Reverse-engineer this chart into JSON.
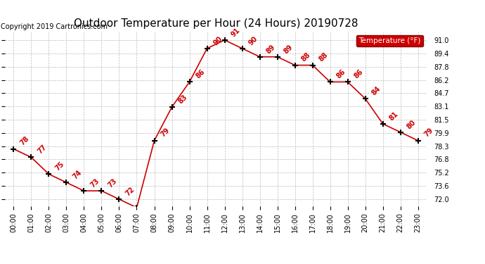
{
  "title": "Outdoor Temperature per Hour (24 Hours) 20190728",
  "copyright": "Copyright 2019 Cartronics.com",
  "legend_label": "Temperature (°F)",
  "hours": [
    "00:00",
    "01:00",
    "02:00",
    "03:00",
    "04:00",
    "05:00",
    "06:00",
    "07:00",
    "08:00",
    "09:00",
    "10:00",
    "11:00",
    "12:00",
    "13:00",
    "14:00",
    "15:00",
    "16:00",
    "17:00",
    "18:00",
    "19:00",
    "20:00",
    "21:00",
    "22:00",
    "23:00"
  ],
  "temps": [
    78,
    77,
    75,
    74,
    73,
    73,
    72,
    71,
    79,
    83,
    86,
    90,
    91,
    90,
    89,
    89,
    88,
    88,
    86,
    86,
    84,
    81,
    80,
    79
  ],
  "line_color": "#cc0000",
  "marker_color": "#000000",
  "label_color": "#cc0000",
  "yticks": [
    72.0,
    73.6,
    75.2,
    76.8,
    78.3,
    79.9,
    81.5,
    83.1,
    84.7,
    86.2,
    87.8,
    89.4,
    91.0
  ],
  "ylim": [
    71.2,
    92.0
  ],
  "background_color": "#ffffff",
  "grid_color": "#bbbbbb",
  "legend_bg": "#cc0000",
  "legend_text_color": "#ffffff",
  "title_fontsize": 11,
  "copyright_fontsize": 7,
  "label_fontsize": 7,
  "tick_fontsize": 7
}
